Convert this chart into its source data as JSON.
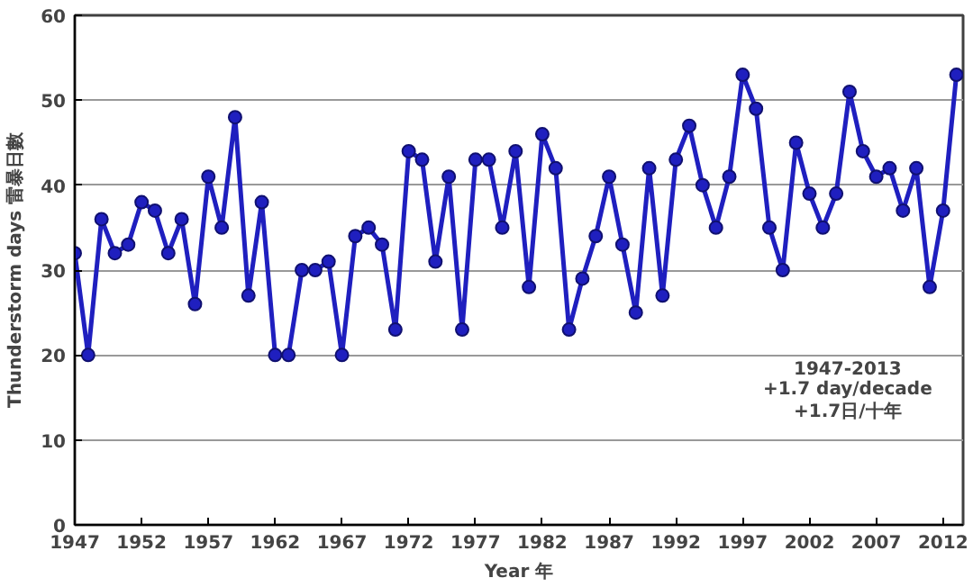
{
  "chart_data": {
    "type": "line",
    "xlabel": "Year 年",
    "ylabel": "Thunderstorm days 雷暴日數",
    "x": [
      1947,
      1948,
      1949,
      1950,
      1951,
      1952,
      1953,
      1954,
      1955,
      1956,
      1957,
      1958,
      1959,
      1960,
      1961,
      1962,
      1963,
      1964,
      1965,
      1966,
      1967,
      1968,
      1969,
      1970,
      1971,
      1972,
      1973,
      1974,
      1975,
      1976,
      1977,
      1978,
      1979,
      1980,
      1981,
      1982,
      1983,
      1984,
      1985,
      1986,
      1987,
      1988,
      1989,
      1990,
      1991,
      1992,
      1993,
      1994,
      1995,
      1996,
      1997,
      1998,
      1999,
      2000,
      2001,
      2002,
      2003,
      2004,
      2005,
      2006,
      2007,
      2008,
      2009,
      2010,
      2011,
      2012,
      2013
    ],
    "series": [
      {
        "color": "#1f1fbf",
        "values": [
          32,
          20,
          36,
          32,
          33,
          38,
          37,
          32,
          36,
          26,
          41,
          35,
          48,
          27,
          38,
          20,
          20,
          30,
          30,
          31,
          20,
          34,
          35,
          33,
          23,
          44,
          43,
          31,
          41,
          23,
          43,
          43,
          35,
          44,
          28,
          46,
          42,
          23,
          29,
          34,
          41,
          33,
          25,
          42,
          27,
          43,
          47,
          40,
          35,
          41,
          53,
          49,
          35,
          30,
          45,
          39,
          35,
          39,
          51,
          44,
          41,
          42,
          37,
          42,
          28,
          37,
          53
        ]
      }
    ],
    "xlim": [
      1947,
      2013.5
    ],
    "xticks": [
      1947,
      1952,
      1957,
      1962,
      1967,
      1972,
      1977,
      1982,
      1987,
      1992,
      1997,
      2002,
      2007,
      2012
    ],
    "ylim": [
      0,
      60
    ],
    "yticks": [
      0,
      10,
      20,
      30,
      40,
      50,
      60
    ],
    "grid": "y",
    "marker": "circle",
    "line_style": "solid",
    "annotations": [
      "1947-2013",
      "+1.7 day/decade",
      "+1.7日/十年"
    ]
  }
}
